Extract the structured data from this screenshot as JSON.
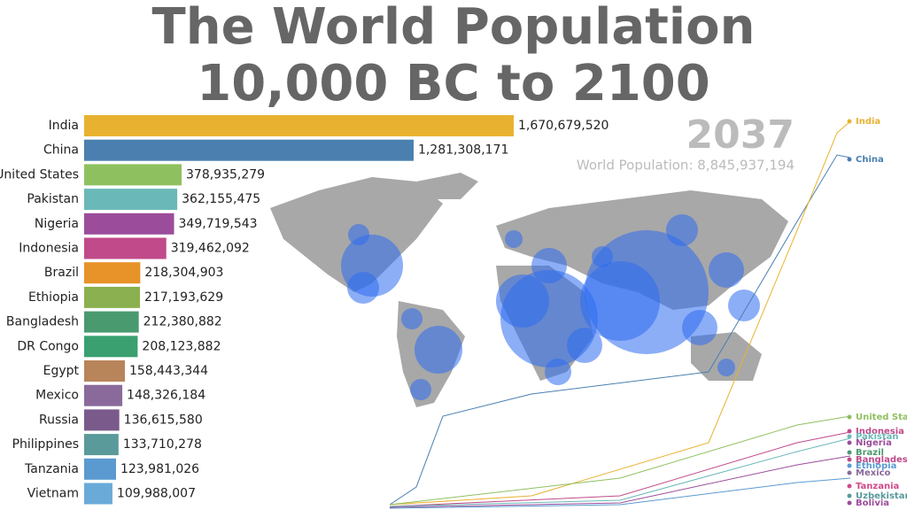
{
  "chart_data": {
    "type": "bar",
    "title": "The World Population",
    "subtitle": "10,000 BC to 2100",
    "year": "2037",
    "total_label": "World Population: 8,845,937,194",
    "categories": [
      "India",
      "China",
      "United States",
      "Pakistan",
      "Nigeria",
      "Indonesia",
      "Brazil",
      "Ethiopia",
      "Bangladesh",
      "DR Congo",
      "Egypt",
      "Mexico",
      "Russia",
      "Philippines",
      "Tanzania",
      "Vietnam"
    ],
    "values": [
      1670679520,
      1281308171,
      378935279,
      362155475,
      349719543,
      319462092,
      218304903,
      217193629,
      212380882,
      208123882,
      158443344,
      148326184,
      136615580,
      133710278,
      123981026,
      109988007
    ],
    "value_labels": [
      "1,670,679,520",
      "1,281,308,171",
      "378,935,279",
      "362,155,475",
      "349,719,543",
      "319,462,092",
      "218,304,903",
      "217,193,629",
      "212,380,882",
      "208,123,882",
      "158,443,344",
      "148,326,184",
      "136,615,580",
      "133,710,278",
      "123,981,026",
      "109,988,007"
    ],
    "colors": [
      "#e8b230",
      "#4a7fb0",
      "#8fc060",
      "#6bb8b8",
      "#9b4d9b",
      "#c04a8a",
      "#e8922a",
      "#8bb050",
      "#4a9a70",
      "#3aa070",
      "#b8845a",
      "#8a6a9a",
      "#7a5a8a",
      "#5a9a9a",
      "#5a9ad0",
      "#6aaad8"
    ]
  },
  "trend_labels": [
    {
      "name": "India",
      "color": "#e8b230"
    },
    {
      "name": "China",
      "color": "#4a7fb0"
    },
    {
      "name": "United States",
      "color": "#8fc060"
    },
    {
      "name": "Indonesia",
      "color": "#c04a8a"
    },
    {
      "name": "Pakistan",
      "color": "#6bb8b8"
    },
    {
      "name": "Nigeria",
      "color": "#9b4d9b"
    },
    {
      "name": "Brazil",
      "color": "#4a9a70"
    },
    {
      "name": "Bangladesh",
      "color": "#c04a8a"
    },
    {
      "name": "Ethiopia",
      "color": "#5a9ad0"
    },
    {
      "name": "Mexico",
      "color": "#8a6a9a"
    },
    {
      "name": "Tanzania",
      "color": "#d04a8a"
    },
    {
      "name": "Uzbekistan",
      "color": "#5a9a9a"
    },
    {
      "name": "Bolivia",
      "color": "#9b4d9b"
    }
  ]
}
